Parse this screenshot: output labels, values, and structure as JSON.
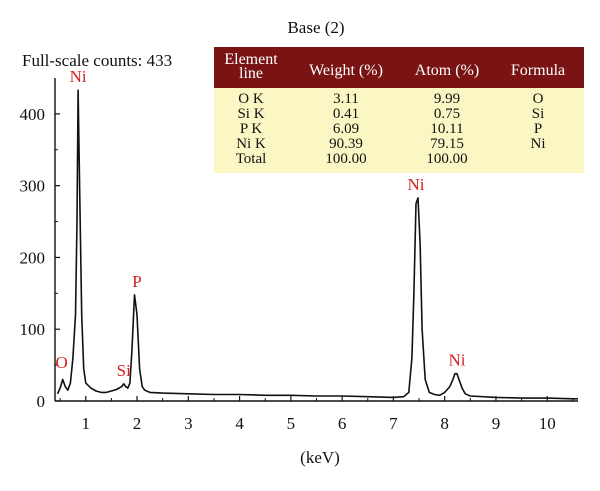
{
  "chart_data": {
    "type": "line",
    "title": "Base (2)",
    "subtitle": "Full-scale counts: 433",
    "xlabel": "(keV)",
    "ylabel": "",
    "xlim": [
      0.4,
      10.6
    ],
    "ylim": [
      0,
      450
    ],
    "x_ticks": [
      1,
      2,
      3,
      4,
      5,
      6,
      7,
      8,
      9,
      10
    ],
    "y_ticks": [
      0,
      100,
      200,
      300,
      400
    ],
    "grid": false,
    "series": [
      {
        "x": [
          0.45,
          0.5,
          0.55,
          0.6,
          0.65,
          0.7,
          0.75,
          0.8,
          0.83,
          0.85,
          0.88,
          0.92,
          0.96,
          1.0,
          1.1,
          1.2,
          1.3,
          1.4,
          1.5,
          1.6,
          1.7,
          1.74,
          1.78,
          1.82,
          1.86,
          1.9,
          1.95,
          2.0,
          2.05,
          2.1,
          2.15,
          2.25,
          2.5,
          3.0,
          3.5,
          4.0,
          4.5,
          5.0,
          5.5,
          6.0,
          6.5,
          7.0,
          7.2,
          7.3,
          7.36,
          7.4,
          7.44,
          7.48,
          7.52,
          7.56,
          7.62,
          7.7,
          7.8,
          7.9,
          8.0,
          8.1,
          8.16,
          8.2,
          8.24,
          8.28,
          8.34,
          8.4,
          8.5,
          9.0,
          9.5,
          10.0,
          10.5,
          10.6
        ],
        "y": [
          10,
          18,
          30,
          20,
          15,
          25,
          60,
          120,
          250,
          433,
          300,
          120,
          45,
          25,
          18,
          14,
          12,
          12,
          14,
          16,
          20,
          24,
          20,
          18,
          25,
          70,
          148,
          120,
          45,
          20,
          15,
          12,
          11,
          10,
          9,
          9,
          8,
          8,
          7,
          7,
          6,
          5,
          6,
          12,
          60,
          150,
          275,
          283,
          220,
          100,
          30,
          12,
          9,
          8,
          12,
          20,
          30,
          38,
          38,
          30,
          18,
          10,
          7,
          5,
          4,
          4,
          3,
          3
        ]
      }
    ],
    "annotations": [
      {
        "label": "O",
        "x": 0.53,
        "y": 35
      },
      {
        "label": "Ni",
        "x": 0.85,
        "y": 433
      },
      {
        "label": "Si",
        "x": 1.74,
        "y": 24
      },
      {
        "label": "P",
        "x": 2.0,
        "y": 148
      },
      {
        "label": "Ni",
        "x": 7.44,
        "y": 283
      },
      {
        "label": "Ni",
        "x": 8.24,
        "y": 38
      }
    ],
    "table": {
      "columns": [
        "Element line",
        "Weight (%)",
        "Atom (%)",
        "Formula"
      ],
      "rows": [
        [
          "O K",
          "3.11",
          "9.99",
          "O"
        ],
        [
          "Si K",
          "0.41",
          "0.75",
          "Si"
        ],
        [
          "P K",
          "6.09",
          "10.11",
          "P"
        ],
        [
          "Ni K",
          "90.39",
          "79.15",
          "Ni"
        ],
        [
          "Total",
          "100.00",
          "100.00",
          ""
        ]
      ]
    },
    "colors": {
      "line": "#111111",
      "peak_labels": "#d42020",
      "table_header": "#7a1414",
      "table_body": "#fbf7c4"
    }
  }
}
